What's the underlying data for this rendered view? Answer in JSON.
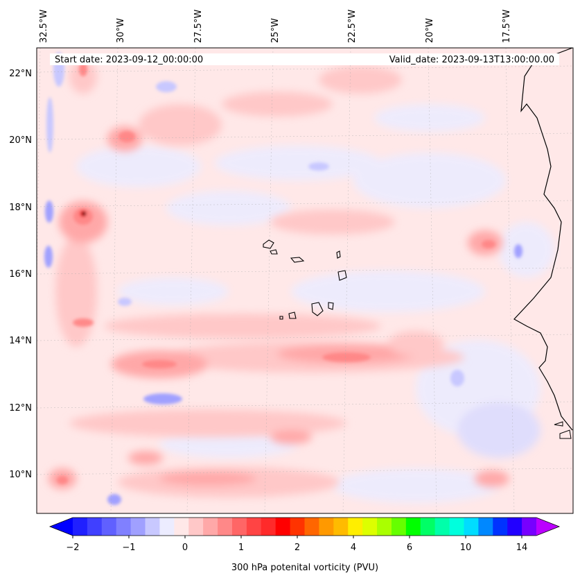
{
  "map": {
    "start_date": "Start date: 2023-09-12_00:00:00",
    "valid_date": "Valid_date: 2023-09-13T13:00:00.00",
    "lon_labels": [
      "32.5°W",
      "30°W",
      "27.5°W",
      "25°W",
      "22.5°W",
      "20°W",
      "17.5°W"
    ],
    "lat_labels": [
      "22°N",
      "20°N",
      "18°N",
      "16°N",
      "14°N",
      "12°N",
      "10°N"
    ],
    "field": "300 hPa potenital vorticity (PVU)"
  },
  "colorbar": {
    "label": "300 hPa potenital vorticity (PVU)",
    "ticks": [
      "−2",
      "−1",
      "0",
      "1",
      "2",
      "4",
      "6",
      "10",
      "14"
    ],
    "colors": [
      "#0000ff",
      "#2020ff",
      "#4040ff",
      "#6060ff",
      "#8080ff",
      "#a0a0ff",
      "#c8c8ff",
      "#ececff",
      "#ffe8e8",
      "#ffc8c8",
      "#ffa8a8",
      "#ff8888",
      "#ff6666",
      "#ff4444",
      "#ff2a2a",
      "#ff0000",
      "#ff3300",
      "#ff6600",
      "#ff9900",
      "#ffbb00",
      "#ffee00",
      "#ddff00",
      "#aaff00",
      "#66ff00",
      "#00ff00",
      "#00ff66",
      "#00ffaa",
      "#00ffdd",
      "#00ddff",
      "#0088ff",
      "#0033ff",
      "#2200ff",
      "#7700ff",
      "#bb00ff"
    ]
  }
}
